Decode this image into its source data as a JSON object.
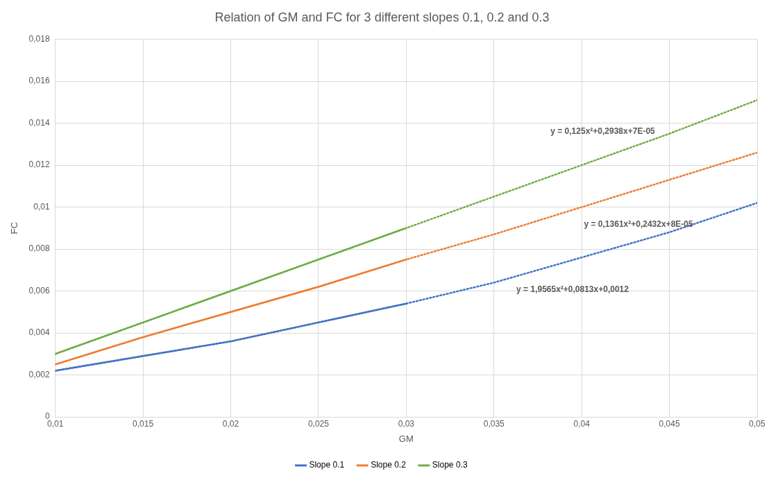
{
  "chart_data": {
    "type": "line",
    "title": "Relation of GM and FC for 3 different slopes 0.1, 0.2 and 0.3",
    "xlabel": "GM",
    "ylabel": "FC",
    "x": [
      0.01,
      0.015,
      0.02,
      0.025,
      0.03
    ],
    "series": [
      {
        "name": "Slope 0.1",
        "color": "#4472c4",
        "values": [
          0.0022,
          0.0029,
          0.0036,
          0.0045,
          0.0054
        ]
      },
      {
        "name": "Slope 0.2",
        "color": "#ed7d31",
        "values": [
          0.0025,
          0.0038,
          0.005,
          0.0062,
          0.0075
        ]
      },
      {
        "name": "Slope 0.3",
        "color": "#70ad47",
        "values": [
          0.003,
          0.0045,
          0.006,
          0.0075,
          0.009
        ]
      },
      {
        "type": "line",
        "line_style": "dotted",
        "color": "#4472c4",
        "x": [
          0.01,
          0.015,
          0.02,
          0.025,
          0.03,
          0.035,
          0.04,
          0.045,
          0.05
        ],
        "values": [
          0.0022,
          0.0029,
          0.0036,
          0.0045,
          0.0054,
          0.0064,
          0.0076,
          0.0088,
          0.0102
        ]
      },
      {
        "type": "line",
        "line_style": "dotted",
        "color": "#ed7d31",
        "x": [
          0.01,
          0.015,
          0.02,
          0.025,
          0.03,
          0.035,
          0.04,
          0.045,
          0.05
        ],
        "values": [
          0.0025,
          0.0038,
          0.005,
          0.0062,
          0.0075,
          0.0087,
          0.01,
          0.0113,
          0.0126
        ]
      },
      {
        "type": "line",
        "line_style": "dotted",
        "color": "#70ad47",
        "x": [
          0.01,
          0.015,
          0.02,
          0.025,
          0.03,
          0.035,
          0.04,
          0.045,
          0.05
        ],
        "values": [
          0.003,
          0.0045,
          0.006,
          0.0075,
          0.009,
          0.0105,
          0.012,
          0.0135,
          0.0151
        ]
      }
    ],
    "annotations": [
      "y = 1,9565x²+0,0813x+0,0012",
      "y = 0,1361x²+0,2432x+8E-05",
      "y = 0,125x²+0,2938x+7E-05"
    ],
    "xlim": [
      0.01,
      0.05
    ],
    "xticks": [
      {
        "value": 0.01,
        "label": "0,01"
      },
      {
        "value": 0.015,
        "label": "0,015"
      },
      {
        "value": 0.02,
        "label": "0,02"
      },
      {
        "value": 0.025,
        "label": "0,025"
      },
      {
        "value": 0.03,
        "label": "0,03"
      },
      {
        "value": 0.035,
        "label": "0,035"
      },
      {
        "value": 0.04,
        "label": "0,04"
      },
      {
        "value": 0.045,
        "label": "0,045"
      },
      {
        "value": 0.05,
        "label": "0,05"
      }
    ],
    "ylim": [
      0,
      0.018
    ],
    "yticks": [
      0,
      {
        "value": 0.002,
        "label": "0,002"
      },
      {
        "value": 0.004,
        "label": "0,004"
      },
      {
        "value": 0.006,
        "label": "0,006"
      },
      {
        "value": 0.008,
        "label": "0,008"
      },
      {
        "value": 0.01,
        "label": "0,01"
      },
      {
        "value": 0.012,
        "label": "0,012"
      },
      {
        "value": 0.014,
        "label": "0,014"
      },
      {
        "value": 0.016,
        "label": "0,016"
      },
      {
        "value": 0.018,
        "label": "0,018"
      }
    ],
    "grid": true,
    "legend": "bottom",
    "marker": "none"
  }
}
